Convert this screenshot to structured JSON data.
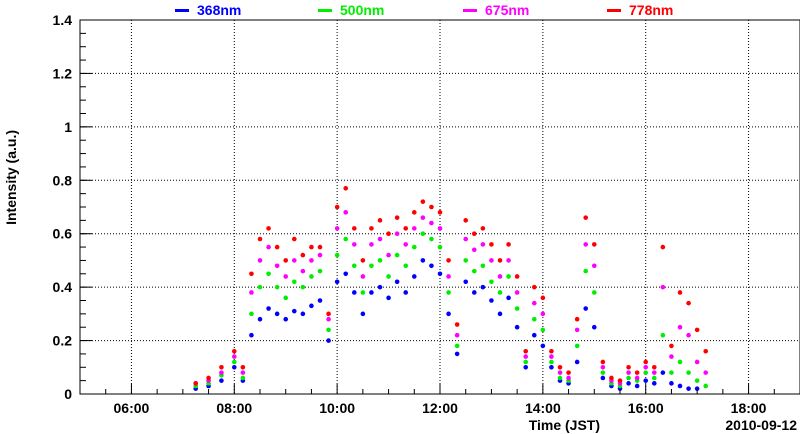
{
  "chart_data": {
    "type": "scatter",
    "title": "",
    "xlabel": "Time (JST)",
    "ylabel": "Intensity (a.u.)",
    "date_label": "2010-09-12",
    "xlim": [
      "05:00",
      "19:00"
    ],
    "ylim": [
      0,
      1.4
    ],
    "grid": true,
    "legend_position": "top",
    "x_ticks": [
      "06:00",
      "08:00",
      "10:00",
      "12:00",
      "14:00",
      "16:00",
      "18:00"
    ],
    "y_ticks": [
      "0",
      "0.2",
      "0.4",
      "0.6",
      "0.8",
      "1",
      "1.2",
      "1.4"
    ],
    "series": [
      {
        "name": "368nm",
        "color": "#0000ff",
        "points": [
          [
            "07:15",
            0.02
          ],
          [
            "07:30",
            0.03
          ],
          [
            "07:45",
            0.05
          ],
          [
            "08:00",
            0.1
          ],
          [
            "08:10",
            0.05
          ],
          [
            "08:20",
            0.22
          ],
          [
            "08:30",
            0.28
          ],
          [
            "08:40",
            0.32
          ],
          [
            "08:50",
            0.3
          ],
          [
            "09:00",
            0.28
          ],
          [
            "09:10",
            0.31
          ],
          [
            "09:20",
            0.3
          ],
          [
            "09:30",
            0.33
          ],
          [
            "09:40",
            0.35
          ],
          [
            "09:50",
            0.2
          ],
          [
            "10:00",
            0.42
          ],
          [
            "10:10",
            0.45
          ],
          [
            "10:20",
            0.38
          ],
          [
            "10:30",
            0.3
          ],
          [
            "10:40",
            0.38
          ],
          [
            "10:50",
            0.4
          ],
          [
            "11:00",
            0.36
          ],
          [
            "11:10",
            0.42
          ],
          [
            "11:20",
            0.38
          ],
          [
            "11:30",
            0.44
          ],
          [
            "11:40",
            0.5
          ],
          [
            "11:50",
            0.48
          ],
          [
            "12:00",
            0.45
          ],
          [
            "12:10",
            0.3
          ],
          [
            "12:20",
            0.15
          ],
          [
            "12:30",
            0.42
          ],
          [
            "12:40",
            0.38
          ],
          [
            "12:50",
            0.4
          ],
          [
            "13:00",
            0.35
          ],
          [
            "13:10",
            0.3
          ],
          [
            "13:20",
            0.36
          ],
          [
            "13:30",
            0.25
          ],
          [
            "13:40",
            0.1
          ],
          [
            "13:50",
            0.22
          ],
          [
            "14:00",
            0.18
          ],
          [
            "14:10",
            0.1
          ],
          [
            "14:20",
            0.05
          ],
          [
            "14:30",
            0.04
          ],
          [
            "14:40",
            0.12
          ],
          [
            "14:50",
            0.32
          ],
          [
            "15:00",
            0.25
          ],
          [
            "15:10",
            0.06
          ],
          [
            "15:20",
            0.03
          ],
          [
            "15:30",
            0.02
          ],
          [
            "15:40",
            0.04
          ],
          [
            "15:50",
            0.03
          ],
          [
            "16:00",
            0.05
          ],
          [
            "16:10",
            0.04
          ],
          [
            "16:20",
            0.08
          ],
          [
            "16:30",
            0.04
          ],
          [
            "16:40",
            0.03
          ],
          [
            "16:50",
            0.02
          ],
          [
            "17:00",
            0.02
          ]
        ]
      },
      {
        "name": "500nm",
        "color": "#00ee00",
        "points": [
          [
            "07:15",
            0.03
          ],
          [
            "07:30",
            0.04
          ],
          [
            "07:45",
            0.07
          ],
          [
            "08:00",
            0.12
          ],
          [
            "08:10",
            0.06
          ],
          [
            "08:20",
            0.3
          ],
          [
            "08:30",
            0.4
          ],
          [
            "08:40",
            0.45
          ],
          [
            "08:50",
            0.4
          ],
          [
            "09:00",
            0.36
          ],
          [
            "09:10",
            0.42
          ],
          [
            "09:20",
            0.4
          ],
          [
            "09:30",
            0.44
          ],
          [
            "09:40",
            0.46
          ],
          [
            "09:50",
            0.24
          ],
          [
            "10:00",
            0.52
          ],
          [
            "10:10",
            0.58
          ],
          [
            "10:20",
            0.48
          ],
          [
            "10:30",
            0.38
          ],
          [
            "10:40",
            0.48
          ],
          [
            "10:50",
            0.5
          ],
          [
            "11:00",
            0.44
          ],
          [
            "11:10",
            0.52
          ],
          [
            "11:20",
            0.48
          ],
          [
            "11:30",
            0.55
          ],
          [
            "11:40",
            0.6
          ],
          [
            "11:50",
            0.58
          ],
          [
            "12:00",
            0.55
          ],
          [
            "12:10",
            0.38
          ],
          [
            "12:20",
            0.18
          ],
          [
            "12:30",
            0.5
          ],
          [
            "12:40",
            0.46
          ],
          [
            "12:50",
            0.48
          ],
          [
            "13:00",
            0.42
          ],
          [
            "13:10",
            0.38
          ],
          [
            "13:20",
            0.44
          ],
          [
            "13:30",
            0.32
          ],
          [
            "13:40",
            0.12
          ],
          [
            "13:50",
            0.28
          ],
          [
            "14:00",
            0.24
          ],
          [
            "14:10",
            0.12
          ],
          [
            "14:20",
            0.06
          ],
          [
            "14:30",
            0.05
          ],
          [
            "14:40",
            0.18
          ],
          [
            "14:50",
            0.46
          ],
          [
            "15:00",
            0.38
          ],
          [
            "15:10",
            0.08
          ],
          [
            "15:20",
            0.04
          ],
          [
            "15:30",
            0.03
          ],
          [
            "15:40",
            0.06
          ],
          [
            "15:50",
            0.05
          ],
          [
            "16:00",
            0.08
          ],
          [
            "16:10",
            0.06
          ],
          [
            "16:20",
            0.22
          ],
          [
            "16:30",
            0.08
          ],
          [
            "16:40",
            0.12
          ],
          [
            "16:50",
            0.08
          ],
          [
            "17:00",
            0.05
          ],
          [
            "17:10",
            0.03
          ]
        ]
      },
      {
        "name": "675nm",
        "color": "#ff00ff",
        "points": [
          [
            "07:15",
            0.04
          ],
          [
            "07:30",
            0.05
          ],
          [
            "07:45",
            0.08
          ],
          [
            "08:00",
            0.14
          ],
          [
            "08:10",
            0.08
          ],
          [
            "08:20",
            0.38
          ],
          [
            "08:30",
            0.5
          ],
          [
            "08:40",
            0.55
          ],
          [
            "08:50",
            0.48
          ],
          [
            "09:00",
            0.44
          ],
          [
            "09:10",
            0.5
          ],
          [
            "09:20",
            0.46
          ],
          [
            "09:30",
            0.5
          ],
          [
            "09:40",
            0.52
          ],
          [
            "09:50",
            0.28
          ],
          [
            "10:00",
            0.62
          ],
          [
            "10:10",
            0.68
          ],
          [
            "10:20",
            0.56
          ],
          [
            "10:30",
            0.44
          ],
          [
            "10:40",
            0.56
          ],
          [
            "10:50",
            0.58
          ],
          [
            "11:00",
            0.52
          ],
          [
            "11:10",
            0.6
          ],
          [
            "11:20",
            0.56
          ],
          [
            "11:30",
            0.62
          ],
          [
            "11:40",
            0.66
          ],
          [
            "11:50",
            0.64
          ],
          [
            "12:00",
            0.62
          ],
          [
            "12:10",
            0.44
          ],
          [
            "12:20",
            0.22
          ],
          [
            "12:30",
            0.58
          ],
          [
            "12:40",
            0.54
          ],
          [
            "12:50",
            0.56
          ],
          [
            "13:00",
            0.5
          ],
          [
            "13:10",
            0.44
          ],
          [
            "13:20",
            0.5
          ],
          [
            "13:30",
            0.38
          ],
          [
            "13:40",
            0.14
          ],
          [
            "13:50",
            0.34
          ],
          [
            "14:00",
            0.3
          ],
          [
            "14:10",
            0.14
          ],
          [
            "14:20",
            0.08
          ],
          [
            "14:30",
            0.06
          ],
          [
            "14:40",
            0.24
          ],
          [
            "14:50",
            0.56
          ],
          [
            "15:00",
            0.48
          ],
          [
            "15:10",
            0.1
          ],
          [
            "15:20",
            0.05
          ],
          [
            "15:30",
            0.04
          ],
          [
            "15:40",
            0.08
          ],
          [
            "15:50",
            0.06
          ],
          [
            "16:00",
            0.1
          ],
          [
            "16:10",
            0.08
          ],
          [
            "16:20",
            0.4
          ],
          [
            "16:30",
            0.14
          ],
          [
            "16:40",
            0.25
          ],
          [
            "16:50",
            0.22
          ],
          [
            "17:00",
            0.12
          ],
          [
            "17:10",
            0.08
          ]
        ]
      },
      {
        "name": "778nm",
        "color": "#ff0000",
        "points": [
          [
            "07:15",
            0.04
          ],
          [
            "07:30",
            0.06
          ],
          [
            "07:45",
            0.1
          ],
          [
            "08:00",
            0.16
          ],
          [
            "08:10",
            0.1
          ],
          [
            "08:20",
            0.45
          ],
          [
            "08:30",
            0.58
          ],
          [
            "08:40",
            0.62
          ],
          [
            "08:50",
            0.55
          ],
          [
            "09:00",
            0.5
          ],
          [
            "09:10",
            0.58
          ],
          [
            "09:20",
            0.52
          ],
          [
            "09:30",
            0.55
          ],
          [
            "09:40",
            0.55
          ],
          [
            "09:50",
            0.3
          ],
          [
            "10:00",
            0.7
          ],
          [
            "10:10",
            0.77
          ],
          [
            "10:20",
            0.62
          ],
          [
            "10:30",
            0.5
          ],
          [
            "10:40",
            0.62
          ],
          [
            "10:50",
            0.65
          ],
          [
            "11:00",
            0.6
          ],
          [
            "11:10",
            0.66
          ],
          [
            "11:20",
            0.62
          ],
          [
            "11:30",
            0.68
          ],
          [
            "11:40",
            0.72
          ],
          [
            "11:50",
            0.7
          ],
          [
            "12:00",
            0.68
          ],
          [
            "12:10",
            0.5
          ],
          [
            "12:20",
            0.26
          ],
          [
            "12:30",
            0.65
          ],
          [
            "12:40",
            0.6
          ],
          [
            "12:50",
            0.62
          ],
          [
            "13:00",
            0.56
          ],
          [
            "13:10",
            0.5
          ],
          [
            "13:20",
            0.56
          ],
          [
            "13:30",
            0.44
          ],
          [
            "13:40",
            0.16
          ],
          [
            "13:50",
            0.4
          ],
          [
            "14:00",
            0.36
          ],
          [
            "14:10",
            0.16
          ],
          [
            "14:20",
            0.1
          ],
          [
            "14:30",
            0.08
          ],
          [
            "14:40",
            0.28
          ],
          [
            "14:50",
            0.66
          ],
          [
            "15:00",
            0.56
          ],
          [
            "15:10",
            0.12
          ],
          [
            "15:20",
            0.06
          ],
          [
            "15:30",
            0.05
          ],
          [
            "15:40",
            0.1
          ],
          [
            "15:50",
            0.08
          ],
          [
            "16:00",
            0.12
          ],
          [
            "16:10",
            0.1
          ],
          [
            "16:20",
            0.55
          ],
          [
            "16:30",
            0.18
          ],
          [
            "16:40",
            0.38
          ],
          [
            "16:50",
            0.34
          ],
          [
            "17:00",
            0.24
          ],
          [
            "17:10",
            0.16
          ]
        ]
      }
    ]
  }
}
